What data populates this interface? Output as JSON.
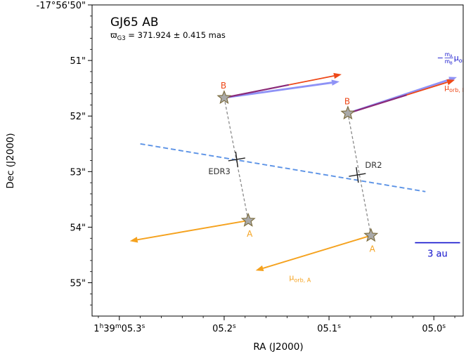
{
  "chart_data": {
    "type": "scatter",
    "title": "GJ65 AB",
    "subtitle": "ϖ_G3 = 371.924 ± 0.415 mas",
    "subtitle_parts": {
      "symbol": "ϖ",
      "sub": "G3",
      "rest": " = 371.924 ± 0.415 mas"
    },
    "xlabel": "RA (J2000)",
    "ylabel": "Dec (J2000)",
    "xlim_sec": [
      5.326,
      4.972
    ],
    "ylim_arcsec": [
      50.0,
      55.6
    ],
    "x_ticks": [
      {
        "value": 5.3,
        "main": "1",
        "sup1": "h",
        "mid": "39",
        "sup2": "m",
        "tail": "05.3",
        "sup3": "s"
      },
      {
        "value": 5.2,
        "main": "",
        "sup1": "",
        "mid": "",
        "sup2": "",
        "tail": "05.2",
        "sup3": "s"
      },
      {
        "value": 5.1,
        "main": "",
        "sup1": "",
        "mid": "",
        "sup2": "",
        "tail": "05.1",
        "sup3": "s"
      },
      {
        "value": 5.0,
        "main": "",
        "sup1": "",
        "mid": "",
        "sup2": "",
        "tail": "05.0",
        "sup3": "s"
      }
    ],
    "y_ticks": [
      {
        "value": 50.0,
        "label": "-17°56'50\""
      },
      {
        "value": 51.0,
        "label": "51\""
      },
      {
        "value": 52.0,
        "label": "52\""
      },
      {
        "value": 53.0,
        "label": "53\""
      },
      {
        "value": 54.0,
        "label": "54\""
      },
      {
        "value": 55.0,
        "label": "55\""
      }
    ],
    "epochs": [
      {
        "label": "EDR3",
        "barycenter": [
          5.188,
          52.78
        ],
        "A": [
          5.177,
          53.88
        ],
        "B": [
          5.2,
          51.67
        ],
        "A_proper_motion_end": [
          5.29,
          54.25
        ],
        "B_total_motion_end": [
          5.088,
          51.25
        ],
        "B_scaled_orbit_end": [
          5.09,
          51.38
        ]
      },
      {
        "label": "DR2",
        "barycenter": [
          5.073,
          53.06
        ],
        "A": [
          5.06,
          54.15
        ],
        "B": [
          5.082,
          51.95
        ],
        "A_proper_motion_end": [
          5.17,
          54.78
        ],
        "B_total_motion_end": [
          4.98,
          51.35
        ],
        "B_scaled_orbit_end": [
          4.978,
          51.3
        ]
      }
    ],
    "proper_motion_line": {
      "x": [
        5.28,
        5.008
      ],
      "y": [
        52.5,
        53.36
      ]
    },
    "scale_bar": {
      "x": [
        5.018,
        4.975
      ],
      "y": 54.28,
      "label": "3 au"
    },
    "vector_labels": {
      "A": {
        "text": "μ",
        "sub": "orb, A"
      },
      "B": {
        "text": "μ",
        "sub": "orb, B"
      },
      "ratio": {
        "num": "m",
        "num_sub": "A",
        "den": "m",
        "den_sub": "B",
        "text": "μ",
        "sub": "orb, A",
        "sign": "−"
      }
    },
    "component_labels": {
      "A": "A",
      "B": "B"
    },
    "colors": {
      "A": "#f5a21e",
      "B": "#ee4818",
      "B_scaled": "#7b7ff5",
      "overlap": "#8a2a7a",
      "proper_motion": "#5c93e6",
      "connector": "#8a8a8a",
      "star_fill": "#a9a9a9",
      "star_edge": "#7a6a3a",
      "scale_bar": "#1111cc"
    }
  }
}
